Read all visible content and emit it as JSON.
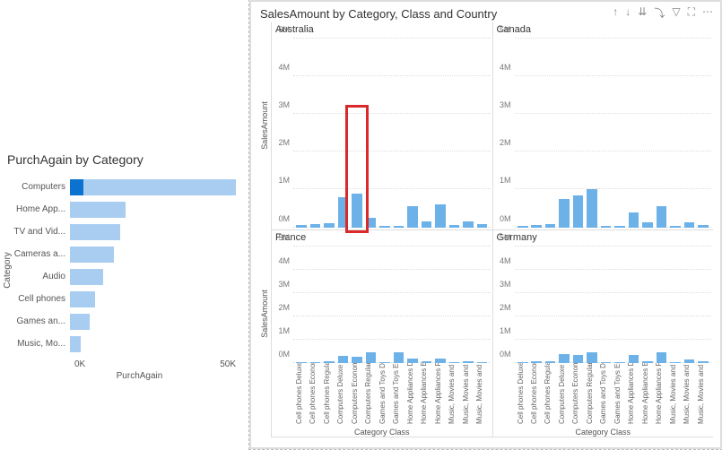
{
  "left_chart": {
    "title": "PurchAgain by Category",
    "type": "bar-horizontal",
    "y_label": "Category",
    "x_label": "PurchAgain",
    "x_ticks": [
      "0K",
      "50K"
    ],
    "x_max": 60000,
    "bar_color": "#a9cdf0",
    "highlight_color": "#0b72d0",
    "categories": [
      {
        "label": "Computers",
        "value": 60000,
        "highlight_value": 5000
      },
      {
        "label": "Home App...",
        "value": 20000,
        "highlight_value": 0
      },
      {
        "label": "TV and Vid...",
        "value": 18000,
        "highlight_value": 0
      },
      {
        "label": "Cameras a...",
        "value": 16000,
        "highlight_value": 0
      },
      {
        "label": "Audio",
        "value": 12000,
        "highlight_value": 0
      },
      {
        "label": "Cell phones",
        "value": 9000,
        "highlight_value": 0
      },
      {
        "label": "Games an...",
        "value": 7000,
        "highlight_value": 0
      },
      {
        "label": "Music, Mo...",
        "value": 4000,
        "highlight_value": 0
      }
    ]
  },
  "right_chart": {
    "title": "SalesAmount by Category, Class and Country",
    "type": "small-multiples-bar",
    "y_label": "SalesAmount",
    "x_label": "Category Class",
    "ylim": [
      0,
      5000000
    ],
    "y_ticks": [
      {
        "v": 0,
        "l": "0M"
      },
      {
        "v": 1000000,
        "l": "1M"
      },
      {
        "v": 2000000,
        "l": "2M"
      },
      {
        "v": 3000000,
        "l": "3M"
      },
      {
        "v": 4000000,
        "l": "4M"
      },
      {
        "v": 5000000,
        "l": "5M"
      }
    ],
    "bar_color": "#6cb2e8",
    "grid_color": "#e0e0e0",
    "categories": [
      "Cell phones Deluxe",
      "Cell phones Economy",
      "Cell phones Regular",
      "Computers Deluxe",
      "Computers Economy",
      "Computers Regular",
      "Games and Toys Deluxe",
      "Games and Toys Economy",
      "Home Appliances Deluxe",
      "Home Appliances Econo...",
      "Home Appliances Regular",
      "Music, Movies and Audio...",
      "Music, Movies and Audio...",
      "Music, Movies and Audio..."
    ],
    "panels": [
      {
        "country": "Australia",
        "values": [
          50000,
          80000,
          100000,
          800000,
          900000,
          250000,
          40000,
          40000,
          550000,
          150000,
          600000,
          50000,
          150000,
          80000
        ]
      },
      {
        "country": "Canada",
        "values": [
          40000,
          60000,
          80000,
          750000,
          850000,
          1000000,
          30000,
          30000,
          400000,
          120000,
          550000,
          40000,
          120000,
          60000
        ]
      },
      {
        "country": "France",
        "values": [
          30000,
          40000,
          60000,
          300000,
          250000,
          450000,
          20000,
          450000,
          200000,
          60000,
          200000,
          30000,
          80000,
          40000
        ]
      },
      {
        "country": "Germany",
        "values": [
          50000,
          70000,
          90000,
          400000,
          350000,
          450000,
          30000,
          40000,
          350000,
          70000,
          450000,
          50000,
          150000,
          70000
        ]
      }
    ],
    "highlight_box": {
      "panel": 0,
      "bar_index": 4
    }
  },
  "toolbar": {
    "icons": [
      "up-arrow",
      "down-arrow",
      "drill-expand",
      "drill-hierarchy",
      "filter",
      "focus",
      "more"
    ]
  }
}
